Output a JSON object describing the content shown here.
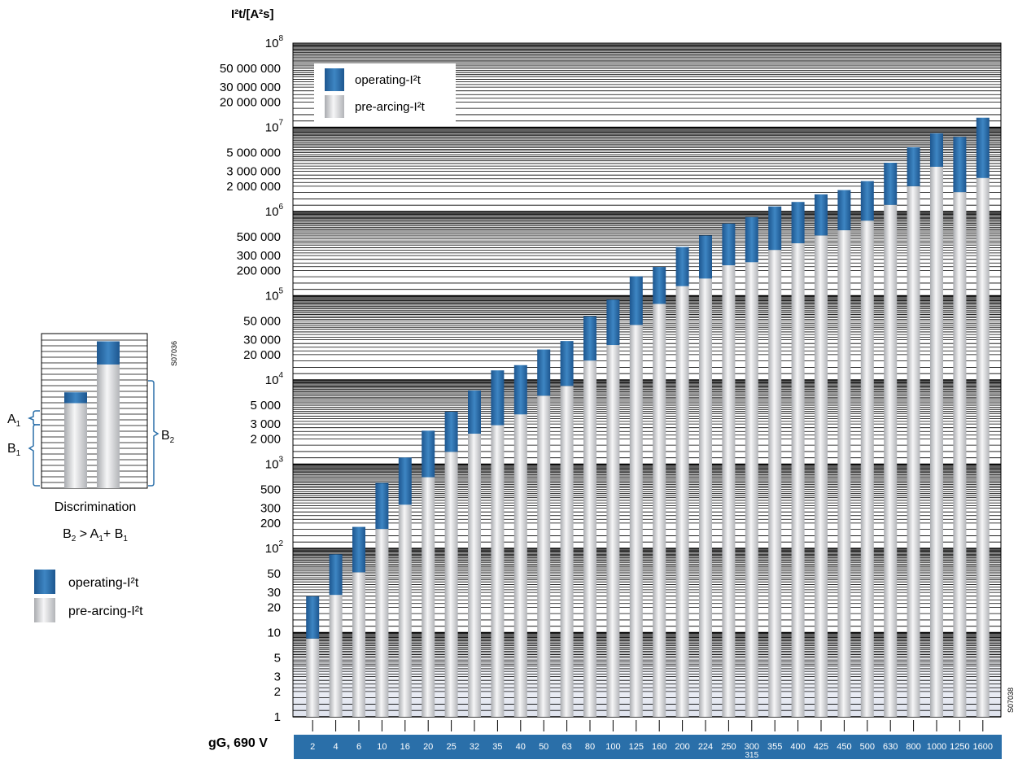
{
  "chart_data": [
    {
      "type": "bar",
      "stacked": true,
      "ylabel": "I²t/[A²s]",
      "yscale": "log",
      "ylim": [
        1,
        100000000
      ],
      "y_major_tick_labels": [
        {
          "base": "10",
          "exp": "8"
        },
        {
          "base": "10",
          "exp": "7"
        },
        {
          "base": "10",
          "exp": "6"
        },
        {
          "base": "10",
          "exp": "5"
        },
        {
          "base": "10",
          "exp": "4"
        },
        {
          "base": "10",
          "exp": "3"
        },
        {
          "base": "10",
          "exp": "2"
        }
      ],
      "y_minor_tick_labels": [
        "50 000 000",
        "30 000 000",
        "20 000 000",
        "5 000 000",
        "3 000 000",
        "2 000 000",
        "500 000",
        "300 000",
        "200 000",
        "50 000",
        "30 000",
        "20 000",
        "5 000",
        "3 000",
        "2 000",
        "500",
        "300",
        "200",
        "50",
        "30",
        "20",
        "10",
        "5",
        "3",
        "2",
        "1"
      ],
      "xlabel": "gG, 690 V",
      "categories": [
        "2",
        "4",
        "6",
        "10",
        "16",
        "20",
        "25",
        "32",
        "35",
        "40",
        "50",
        "63",
        "80",
        "100",
        "125",
        "160",
        "200",
        "224",
        "250",
        "300",
        "355",
        "400",
        "425",
        "450",
        "500",
        "630",
        "800",
        "1000",
        "1250",
        "1600"
      ],
      "category_sublabels": {
        "300": "315"
      },
      "series": [
        {
          "name": "pre-arcing-I²t",
          "color": "#cfd1d4",
          "values": [
            8.5,
            28,
            52,
            170,
            330,
            700,
            1400,
            2300,
            2900,
            3900,
            6500,
            8500,
            17000,
            26000,
            45000,
            80000,
            130000,
            160000,
            230000,
            250000,
            350000,
            420000,
            520000,
            600000,
            780000,
            1200000,
            2000000,
            3400000,
            1700000,
            2500000
          ]
        },
        {
          "name": "operating-I²t",
          "color": "#2f72ad",
          "values": [
            27,
            85,
            180,
            600,
            1200,
            2500,
            4200,
            7500,
            13000,
            15000,
            23000,
            29000,
            57000,
            90000,
            170000,
            220000,
            380000,
            520000,
            720000,
            860000,
            1150000,
            1300000,
            1600000,
            1800000,
            2300000,
            3800000,
            5800000,
            8500000,
            7700000,
            13000000
          ]
        }
      ],
      "legend": {
        "position": "top-left",
        "entries": [
          "operating-I²t",
          "pre-arcing-I²t"
        ]
      },
      "grid": true,
      "figure_code": "S07038"
    },
    {
      "type": "bar",
      "stacked": true,
      "title": "Discrimination",
      "formula": {
        "lhs": "B",
        "lhs_sub": "2",
        "op": " > ",
        "a": "A",
        "a_sub": "1",
        "plus": "+ ",
        "b": "B",
        "b_sub": "1"
      },
      "bars": [
        {
          "pre_arcing_level": 0.55,
          "operating_top_level": 0.62
        },
        {
          "pre_arcing_level": 0.8,
          "operating_top_level": 0.95
        }
      ],
      "labels": [
        {
          "letter": "A",
          "sub": "1"
        },
        {
          "letter": "B",
          "sub": "1"
        },
        {
          "letter": "B",
          "sub": "2"
        }
      ],
      "legend": {
        "entries": [
          "operating-I²t",
          "pre-arcing-I²t"
        ]
      },
      "figure_code": "S07036"
    }
  ]
}
